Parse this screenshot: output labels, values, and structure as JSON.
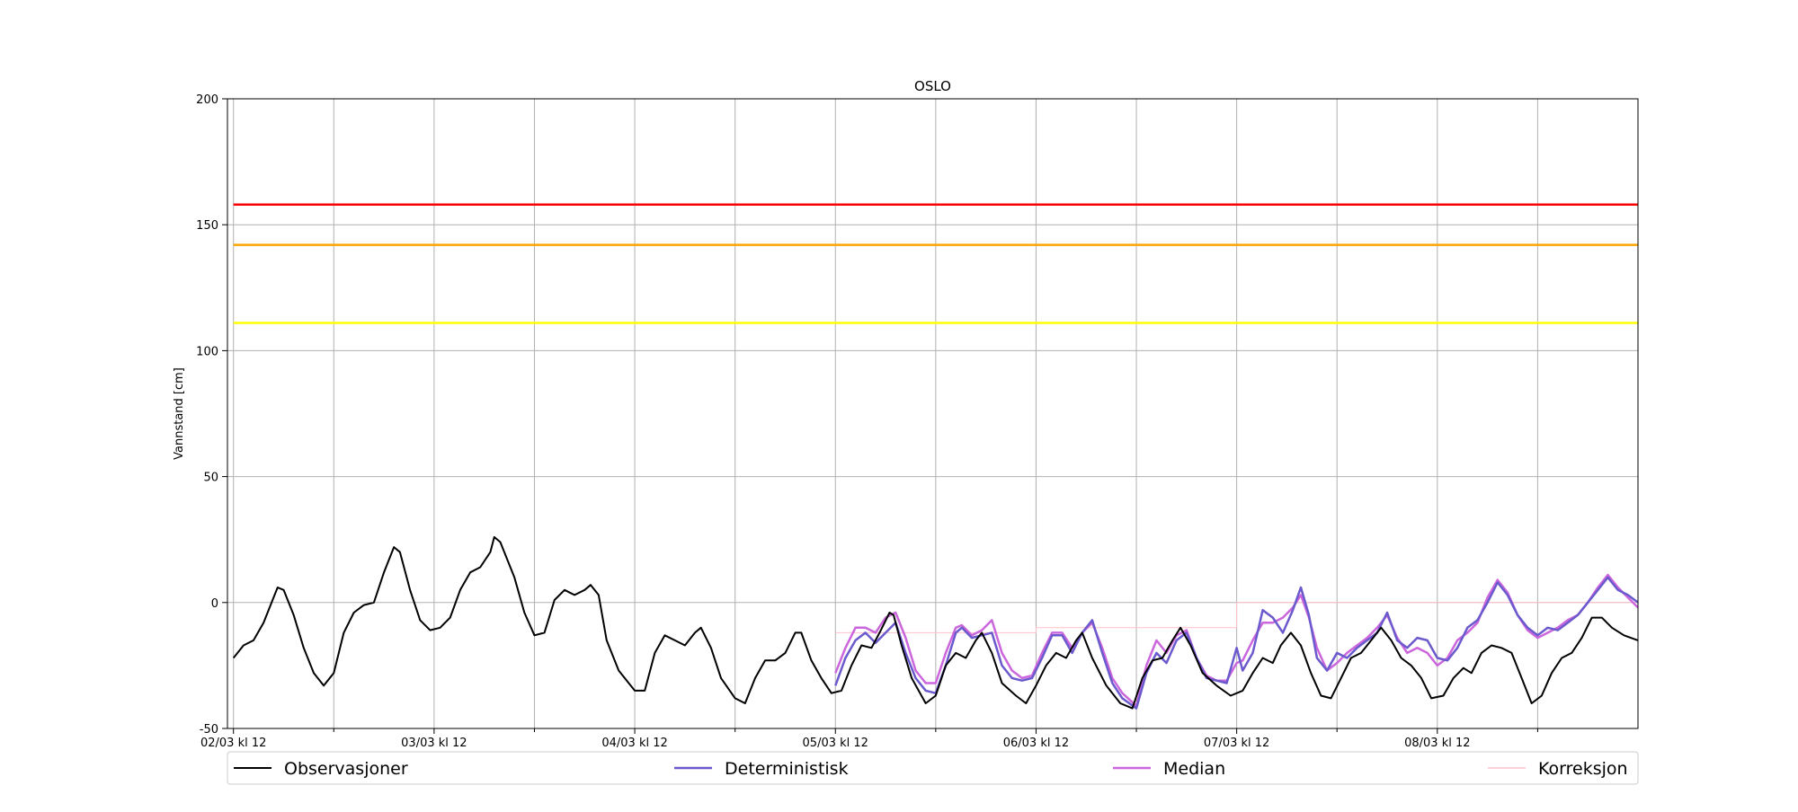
{
  "chart_data": {
    "type": "line",
    "title": "OSLO",
    "xlabel": "",
    "ylabel": "Vannstand [cm]",
    "ylim": [
      -50,
      200
    ],
    "xlim": [
      -0.03,
      7.0
    ],
    "x_unit": "days since 02/03 kl 12",
    "yticks": [
      -50,
      0,
      50,
      100,
      150,
      200
    ],
    "xticks": [
      {
        "x": 0,
        "label": "02/03 kl 12"
      },
      {
        "x": 1,
        "label": "03/03 kl 12"
      },
      {
        "x": 2,
        "label": "04/03 kl 12"
      },
      {
        "x": 3,
        "label": "05/03 kl 12"
      },
      {
        "x": 4,
        "label": "06/03 kl 12"
      },
      {
        "x": 5,
        "label": "07/03 kl 12"
      },
      {
        "x": 6,
        "label": "08/03 kl 12"
      }
    ],
    "minor_xgrid": [
      0.5,
      1.5,
      2.5,
      3.5,
      4.5,
      5.5,
      6.5
    ],
    "grid": true,
    "thresholds": [
      {
        "y": 158,
        "color": "#ff0000"
      },
      {
        "y": 142,
        "color": "#ffa500"
      },
      {
        "y": 111,
        "color": "#ffff00"
      }
    ],
    "series": [
      {
        "name": "Observasjoner",
        "color": "#000000",
        "width": 2,
        "points": [
          [
            0,
            -22
          ],
          [
            0.05,
            -17
          ],
          [
            0.1,
            -15
          ],
          [
            0.15,
            -8
          ],
          [
            0.2,
            2
          ],
          [
            0.22,
            6
          ],
          [
            0.25,
            5
          ],
          [
            0.3,
            -5
          ],
          [
            0.35,
            -18
          ],
          [
            0.4,
            -28
          ],
          [
            0.45,
            -33
          ],
          [
            0.5,
            -28
          ],
          [
            0.55,
            -12
          ],
          [
            0.6,
            -4
          ],
          [
            0.65,
            -1
          ],
          [
            0.7,
            0
          ],
          [
            0.75,
            12
          ],
          [
            0.8,
            22
          ],
          [
            0.83,
            20
          ],
          [
            0.88,
            5
          ],
          [
            0.93,
            -7
          ],
          [
            0.98,
            -11
          ],
          [
            1.03,
            -10
          ],
          [
            1.08,
            -6
          ],
          [
            1.13,
            5
          ],
          [
            1.18,
            12
          ],
          [
            1.23,
            14
          ],
          [
            1.28,
            20
          ],
          [
            1.3,
            26
          ],
          [
            1.33,
            24
          ],
          [
            1.4,
            10
          ],
          [
            1.45,
            -4
          ],
          [
            1.5,
            -13
          ],
          [
            1.55,
            -12
          ],
          [
            1.6,
            1
          ],
          [
            1.65,
            5
          ],
          [
            1.7,
            3
          ],
          [
            1.75,
            5
          ],
          [
            1.78,
            7
          ],
          [
            1.82,
            3
          ],
          [
            1.86,
            -15
          ],
          [
            1.92,
            -27
          ],
          [
            2.0,
            -35
          ],
          [
            2.05,
            -35
          ],
          [
            2.1,
            -20
          ],
          [
            2.15,
            -13
          ],
          [
            2.2,
            -15
          ],
          [
            2.25,
            -17
          ],
          [
            2.3,
            -12
          ],
          [
            2.33,
            -10
          ],
          [
            2.38,
            -18
          ],
          [
            2.43,
            -30
          ],
          [
            2.5,
            -38
          ],
          [
            2.55,
            -40
          ],
          [
            2.6,
            -30
          ],
          [
            2.65,
            -23
          ],
          [
            2.7,
            -23
          ],
          [
            2.75,
            -20
          ],
          [
            2.8,
            -12
          ],
          [
            2.83,
            -12
          ],
          [
            2.88,
            -23
          ],
          [
            2.93,
            -30
          ],
          [
            2.98,
            -36
          ],
          [
            3.03,
            -35
          ],
          [
            3.08,
            -25
          ],
          [
            3.13,
            -17
          ],
          [
            3.18,
            -18
          ],
          [
            3.22,
            -12
          ],
          [
            3.27,
            -4
          ],
          [
            3.29,
            -5
          ],
          [
            3.33,
            -17
          ],
          [
            3.38,
            -30
          ],
          [
            3.45,
            -40
          ],
          [
            3.5,
            -37
          ],
          [
            3.55,
            -25
          ],
          [
            3.6,
            -20
          ],
          [
            3.65,
            -22
          ],
          [
            3.7,
            -15
          ],
          [
            3.73,
            -12
          ],
          [
            3.78,
            -20
          ],
          [
            3.83,
            -32
          ],
          [
            3.9,
            -37
          ],
          [
            3.95,
            -40
          ],
          [
            4.0,
            -33
          ],
          [
            4.05,
            -25
          ],
          [
            4.1,
            -20
          ],
          [
            4.15,
            -22
          ],
          [
            4.2,
            -15
          ],
          [
            4.23,
            -12
          ],
          [
            4.28,
            -22
          ],
          [
            4.35,
            -33
          ],
          [
            4.42,
            -40
          ],
          [
            4.48,
            -42
          ],
          [
            4.53,
            -30
          ],
          [
            4.58,
            -23
          ],
          [
            4.63,
            -22
          ],
          [
            4.68,
            -15
          ],
          [
            4.72,
            -10
          ],
          [
            4.77,
            -17
          ],
          [
            4.83,
            -28
          ],
          [
            4.9,
            -33
          ],
          [
            4.97,
            -37
          ],
          [
            5.03,
            -35
          ],
          [
            5.08,
            -28
          ],
          [
            5.13,
            -22
          ],
          [
            5.18,
            -24
          ],
          [
            5.22,
            -17
          ],
          [
            5.27,
            -12
          ],
          [
            5.32,
            -17
          ],
          [
            5.37,
            -28
          ],
          [
            5.42,
            -37
          ],
          [
            5.47,
            -38
          ],
          [
            5.52,
            -30
          ],
          [
            5.57,
            -22
          ],
          [
            5.62,
            -20
          ],
          [
            5.67,
            -15
          ],
          [
            5.72,
            -10
          ],
          [
            5.77,
            -15
          ],
          [
            5.82,
            -22
          ],
          [
            5.87,
            -25
          ],
          [
            5.92,
            -30
          ],
          [
            5.97,
            -38
          ],
          [
            6.03,
            -37
          ],
          [
            6.08,
            -30
          ],
          [
            6.13,
            -26
          ],
          [
            6.17,
            -28
          ],
          [
            6.22,
            -20
          ],
          [
            6.27,
            -17
          ],
          [
            6.32,
            -18
          ],
          [
            6.37,
            -20
          ],
          [
            6.42,
            -30
          ],
          [
            6.47,
            -40
          ],
          [
            6.52,
            -37
          ],
          [
            6.57,
            -28
          ],
          [
            6.62,
            -22
          ],
          [
            6.67,
            -20
          ],
          [
            6.72,
            -14
          ],
          [
            6.77,
            -6
          ],
          [
            6.82,
            -6
          ],
          [
            6.87,
            -10
          ],
          [
            6.93,
            -13
          ],
          [
            7.0,
            -15
          ]
        ]
      },
      {
        "name": "Deterministisk",
        "color": "#6a5acd",
        "width": 2.5,
        "points": [
          [
            3.0,
            -33
          ],
          [
            3.05,
            -22
          ],
          [
            3.1,
            -15
          ],
          [
            3.15,
            -12
          ],
          [
            3.2,
            -16
          ],
          [
            3.25,
            -12
          ],
          [
            3.3,
            -8
          ],
          [
            3.35,
            -20
          ],
          [
            3.4,
            -30
          ],
          [
            3.45,
            -35
          ],
          [
            3.5,
            -36
          ],
          [
            3.55,
            -25
          ],
          [
            3.6,
            -12
          ],
          [
            3.63,
            -10
          ],
          [
            3.68,
            -14
          ],
          [
            3.73,
            -13
          ],
          [
            3.78,
            -12
          ],
          [
            3.83,
            -25
          ],
          [
            3.88,
            -30
          ],
          [
            3.93,
            -31
          ],
          [
            3.98,
            -30
          ],
          [
            4.03,
            -22
          ],
          [
            4.08,
            -13
          ],
          [
            4.13,
            -13
          ],
          [
            4.18,
            -20
          ],
          [
            4.23,
            -12
          ],
          [
            4.28,
            -7
          ],
          [
            4.33,
            -20
          ],
          [
            4.38,
            -32
          ],
          [
            4.43,
            -38
          ],
          [
            4.5,
            -42
          ],
          [
            4.55,
            -28
          ],
          [
            4.6,
            -20
          ],
          [
            4.65,
            -24
          ],
          [
            4.7,
            -15
          ],
          [
            4.75,
            -12
          ],
          [
            4.8,
            -22
          ],
          [
            4.85,
            -30
          ],
          [
            4.9,
            -31
          ],
          [
            4.95,
            -32
          ],
          [
            5.0,
            -18
          ],
          [
            5.03,
            -27
          ],
          [
            5.08,
            -20
          ],
          [
            5.13,
            -3
          ],
          [
            5.18,
            -6
          ],
          [
            5.23,
            -12
          ],
          [
            5.28,
            -3
          ],
          [
            5.32,
            6
          ],
          [
            5.36,
            -5
          ],
          [
            5.4,
            -22
          ],
          [
            5.45,
            -27
          ],
          [
            5.5,
            -20
          ],
          [
            5.55,
            -22
          ],
          [
            5.6,
            -18
          ],
          [
            5.65,
            -15
          ],
          [
            5.7,
            -12
          ],
          [
            5.75,
            -4
          ],
          [
            5.8,
            -15
          ],
          [
            5.85,
            -18
          ],
          [
            5.9,
            -14
          ],
          [
            5.95,
            -15
          ],
          [
            6.0,
            -22
          ],
          [
            6.05,
            -23
          ],
          [
            6.1,
            -18
          ],
          [
            6.15,
            -10
          ],
          [
            6.2,
            -7
          ],
          [
            6.25,
            0
          ],
          [
            6.3,
            8
          ],
          [
            6.35,
            3
          ],
          [
            6.4,
            -5
          ],
          [
            6.45,
            -10
          ],
          [
            6.5,
            -13
          ],
          [
            6.55,
            -10
          ],
          [
            6.6,
            -11
          ],
          [
            6.65,
            -8
          ],
          [
            6.7,
            -5
          ],
          [
            6.75,
            0
          ],
          [
            6.8,
            5
          ],
          [
            6.85,
            10
          ],
          [
            6.9,
            5
          ],
          [
            6.95,
            3
          ],
          [
            7.0,
            0
          ]
        ]
      },
      {
        "name": "Median",
        "color": "#cc66dd",
        "width": 2.5,
        "points": [
          [
            3.0,
            -28
          ],
          [
            3.05,
            -18
          ],
          [
            3.1,
            -10
          ],
          [
            3.15,
            -10
          ],
          [
            3.2,
            -12
          ],
          [
            3.25,
            -6
          ],
          [
            3.3,
            -4
          ],
          [
            3.35,
            -14
          ],
          [
            3.4,
            -27
          ],
          [
            3.45,
            -32
          ],
          [
            3.5,
            -32
          ],
          [
            3.55,
            -20
          ],
          [
            3.6,
            -10
          ],
          [
            3.63,
            -9
          ],
          [
            3.68,
            -13
          ],
          [
            3.73,
            -11
          ],
          [
            3.78,
            -7
          ],
          [
            3.83,
            -20
          ],
          [
            3.88,
            -27
          ],
          [
            3.93,
            -30
          ],
          [
            3.98,
            -29
          ],
          [
            4.03,
            -20
          ],
          [
            4.08,
            -12
          ],
          [
            4.13,
            -12
          ],
          [
            4.18,
            -18
          ],
          [
            4.23,
            -12
          ],
          [
            4.28,
            -8
          ],
          [
            4.33,
            -18
          ],
          [
            4.38,
            -30
          ],
          [
            4.43,
            -36
          ],
          [
            4.5,
            -41
          ],
          [
            4.55,
            -25
          ],
          [
            4.6,
            -15
          ],
          [
            4.65,
            -20
          ],
          [
            4.7,
            -13
          ],
          [
            4.75,
            -11
          ],
          [
            4.8,
            -22
          ],
          [
            4.85,
            -29
          ],
          [
            4.9,
            -31
          ],
          [
            4.95,
            -31
          ],
          [
            5.0,
            -24
          ],
          [
            5.03,
            -23
          ],
          [
            5.08,
            -15
          ],
          [
            5.13,
            -8
          ],
          [
            5.18,
            -8
          ],
          [
            5.23,
            -6
          ],
          [
            5.28,
            -2
          ],
          [
            5.32,
            3
          ],
          [
            5.36,
            -6
          ],
          [
            5.4,
            -18
          ],
          [
            5.45,
            -27
          ],
          [
            5.5,
            -24
          ],
          [
            5.55,
            -20
          ],
          [
            5.6,
            -17
          ],
          [
            5.65,
            -14
          ],
          [
            5.7,
            -10
          ],
          [
            5.75,
            -5
          ],
          [
            5.8,
            -14
          ],
          [
            5.85,
            -20
          ],
          [
            5.9,
            -18
          ],
          [
            5.95,
            -20
          ],
          [
            6.0,
            -25
          ],
          [
            6.05,
            -22
          ],
          [
            6.1,
            -15
          ],
          [
            6.15,
            -12
          ],
          [
            6.2,
            -8
          ],
          [
            6.25,
            2
          ],
          [
            6.3,
            9
          ],
          [
            6.35,
            4
          ],
          [
            6.4,
            -5
          ],
          [
            6.45,
            -11
          ],
          [
            6.5,
            -14
          ],
          [
            6.55,
            -12
          ],
          [
            6.6,
            -10
          ],
          [
            6.65,
            -7
          ],
          [
            6.7,
            -5
          ],
          [
            6.75,
            0
          ],
          [
            6.8,
            6
          ],
          [
            6.85,
            11
          ],
          [
            6.9,
            6
          ],
          [
            6.95,
            2
          ],
          [
            7.0,
            -2
          ]
        ]
      },
      {
        "name": "Korreksjon",
        "color": "#ffc0cb",
        "width": 1,
        "points": [
          [
            3.0,
            -12
          ],
          [
            4.0,
            -12
          ],
          [
            4.0,
            -10
          ],
          [
            5.0,
            -10
          ],
          [
            5.0,
            0
          ],
          [
            7.0,
            0
          ]
        ]
      }
    ]
  }
}
